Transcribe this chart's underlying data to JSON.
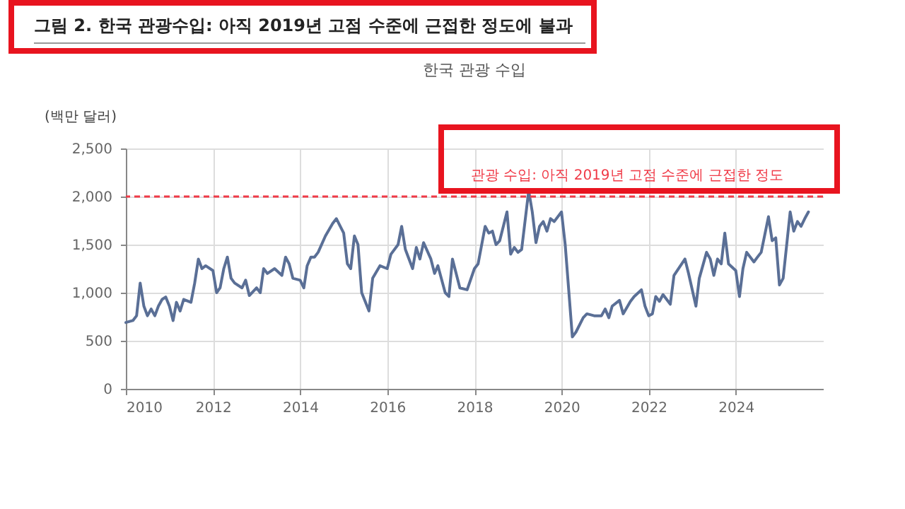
{
  "chart_data": {
    "type": "line",
    "title": "그림 2. 한국 관광수입: 아직 2019년 고점 수준에 근접한 정도에 불과",
    "subtitle": "한국 관광 수입",
    "ylabel": "(백만 달러)",
    "x": [
      "2010-01",
      "2010-03",
      "2010-04",
      "2010-05",
      "2010-06",
      "2010-07",
      "2010-08",
      "2010-09",
      "2010-10",
      "2010-11",
      "2010-12",
      "2011-01",
      "2011-02",
      "2011-03",
      "2011-04",
      "2011-05",
      "2011-07",
      "2011-08",
      "2011-09",
      "2011-10",
      "2011-11",
      "2012-01",
      "2012-02",
      "2012-03",
      "2012-04",
      "2012-05",
      "2012-06",
      "2012-07",
      "2012-09",
      "2012-10",
      "2012-11",
      "2013-01",
      "2013-02",
      "2013-03",
      "2013-04",
      "2013-06",
      "2013-08",
      "2013-09",
      "2013-10",
      "2013-11",
      "2014-01",
      "2014-02",
      "2014-03",
      "2014-04",
      "2014-05",
      "2014-06",
      "2014-08",
      "2014-10",
      "2014-11",
      "2015-01",
      "2015-02",
      "2015-03",
      "2015-04",
      "2015-05",
      "2015-06",
      "2015-08",
      "2015-09",
      "2015-11",
      "2016-01",
      "2016-02",
      "2016-04",
      "2016-05",
      "2016-06",
      "2016-08",
      "2016-09",
      "2016-10",
      "2016-11",
      "2017-01",
      "2017-02",
      "2017-03",
      "2017-05",
      "2017-06",
      "2017-07",
      "2017-09",
      "2017-11",
      "2018-01",
      "2018-02",
      "2018-04",
      "2018-05",
      "2018-06",
      "2018-07",
      "2018-08",
      "2018-10",
      "2018-11",
      "2018-12",
      "2019-01",
      "2019-02",
      "2019-04",
      "2019-05",
      "2019-06",
      "2019-07",
      "2019-08",
      "2019-09",
      "2019-10",
      "2019-11",
      "2020-01",
      "2020-02",
      "2020-04",
      "2020-05",
      "2020-07",
      "2020-08",
      "2020-10",
      "2020-12",
      "2021-01",
      "2021-02",
      "2021-03",
      "2021-05",
      "2021-06",
      "2021-08",
      "2021-09",
      "2021-11",
      "2021-12",
      "2022-01",
      "2022-02",
      "2022-03",
      "2022-04",
      "2022-05",
      "2022-07",
      "2022-08",
      "2022-11",
      "2022-12",
      "2023-02",
      "2023-03",
      "2023-05",
      "2023-06",
      "2023-07",
      "2023-08",
      "2023-09",
      "2023-10",
      "2023-11",
      "2024-01",
      "2024-02",
      "2024-03",
      "2024-04",
      "2024-06",
      "2024-07",
      "2024-08",
      "2024-10",
      "2024-11",
      "2024-12",
      "2025-01",
      "2025-02",
      "2025-04",
      "2025-05",
      "2025-06",
      "2025-07",
      "2025-08",
      "2025-09"
    ],
    "series": [
      {
        "color": "#5a6f96",
        "values": [
          690,
          710,
          760,
          1100,
          860,
          760,
          830,
          760,
          860,
          930,
          955,
          860,
          710,
          900,
          810,
          930,
          900,
          1100,
          1350,
          1250,
          1280,
          1230,
          1000,
          1050,
          1250,
          1370,
          1150,
          1100,
          1050,
          1130,
          970,
          1050,
          1000,
          1250,
          1200,
          1250,
          1180,
          1370,
          1300,
          1150,
          1130,
          1050,
          1280,
          1370,
          1370,
          1420,
          1590,
          1720,
          1770,
          1620,
          1300,
          1250,
          1590,
          1500,
          1000,
          810,
          1150,
          1280,
          1250,
          1400,
          1500,
          1690,
          1450,
          1250,
          1470,
          1350,
          1520,
          1350,
          1200,
          1280,
          1000,
          960,
          1350,
          1050,
          1030,
          1250,
          1300,
          1690,
          1620,
          1640,
          1500,
          1540,
          1840,
          1400,
          1470,
          1420,
          1450,
          2060,
          1840,
          1520,
          1690,
          1740,
          1640,
          1770,
          1740,
          1840,
          1500,
          540,
          590,
          740,
          780,
          760,
          760,
          830,
          740,
          860,
          920,
          780,
          910,
          960,
          1030,
          860,
          760,
          780,
          960,
          910,
          980,
          880,
          1180,
          1350,
          1200,
          860,
          1150,
          1420,
          1350,
          1180,
          1350,
          1300,
          1620,
          1300,
          1230,
          960,
          1250,
          1420,
          1320,
          1370,
          1420,
          1790,
          1540,
          1570,
          1080,
          1150,
          1840,
          1640,
          1740,
          1690,
          1770,
          1840
        ]
      }
    ],
    "xlim": [
      "2010-01",
      "2026-01"
    ],
    "xticks": [
      "2010",
      "2012",
      "2014",
      "2016",
      "2018",
      "2020",
      "2022",
      "2024"
    ],
    "ylim": [
      0,
      2500
    ],
    "yticks": [
      0,
      500,
      {
        "value": 1000,
        "label": "1,000"
      },
      {
        "value": 1500,
        "label": "1,500"
      },
      {
        "value": 2000,
        "label": "2,000"
      },
      {
        "value": 2500,
        "label": "2,500"
      }
    ],
    "grid": true,
    "ref_lines": [
      {
        "axis": "y",
        "value": 2000,
        "label": "관광 수입: 아직 2019년 고점 수준에 근접한 정도",
        "color": "#f03a47",
        "line_style": "dashed"
      }
    ]
  }
}
